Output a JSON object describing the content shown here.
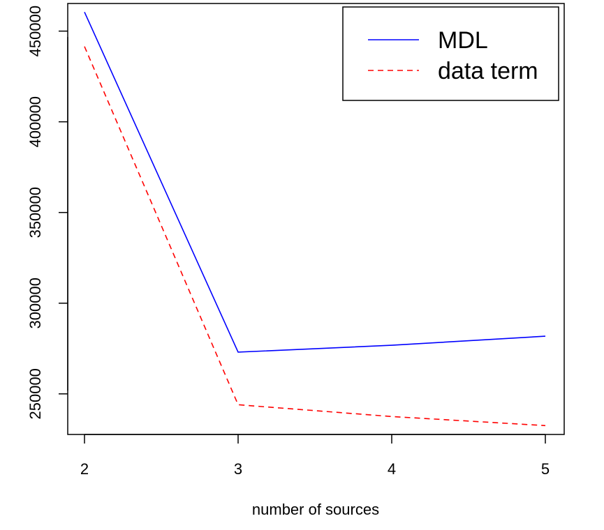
{
  "chart_data": {
    "type": "line",
    "title": "",
    "xlabel": "number of sources",
    "ylabel": "",
    "x": [
      2,
      3,
      4,
      5
    ],
    "xticks": [
      "2",
      "3",
      "4",
      "5"
    ],
    "yticks": [
      "250000",
      "300000",
      "350000",
      "400000",
      "450000"
    ],
    "ytick_values": [
      250000,
      300000,
      350000,
      400000,
      450000
    ],
    "xlim": [
      2,
      5
    ],
    "ylim": [
      233000,
      461000
    ],
    "series": [
      {
        "name": "MDL",
        "values": [
          460500,
          273000,
          276800,
          281800
        ],
        "color": "#0000ff",
        "line_style": "solid"
      },
      {
        "name": "data term",
        "values": [
          441500,
          244000,
          237500,
          232500
        ],
        "color": "#ff0000",
        "line_style": "dashed"
      }
    ],
    "legend_position": "top-right",
    "grid": false
  }
}
